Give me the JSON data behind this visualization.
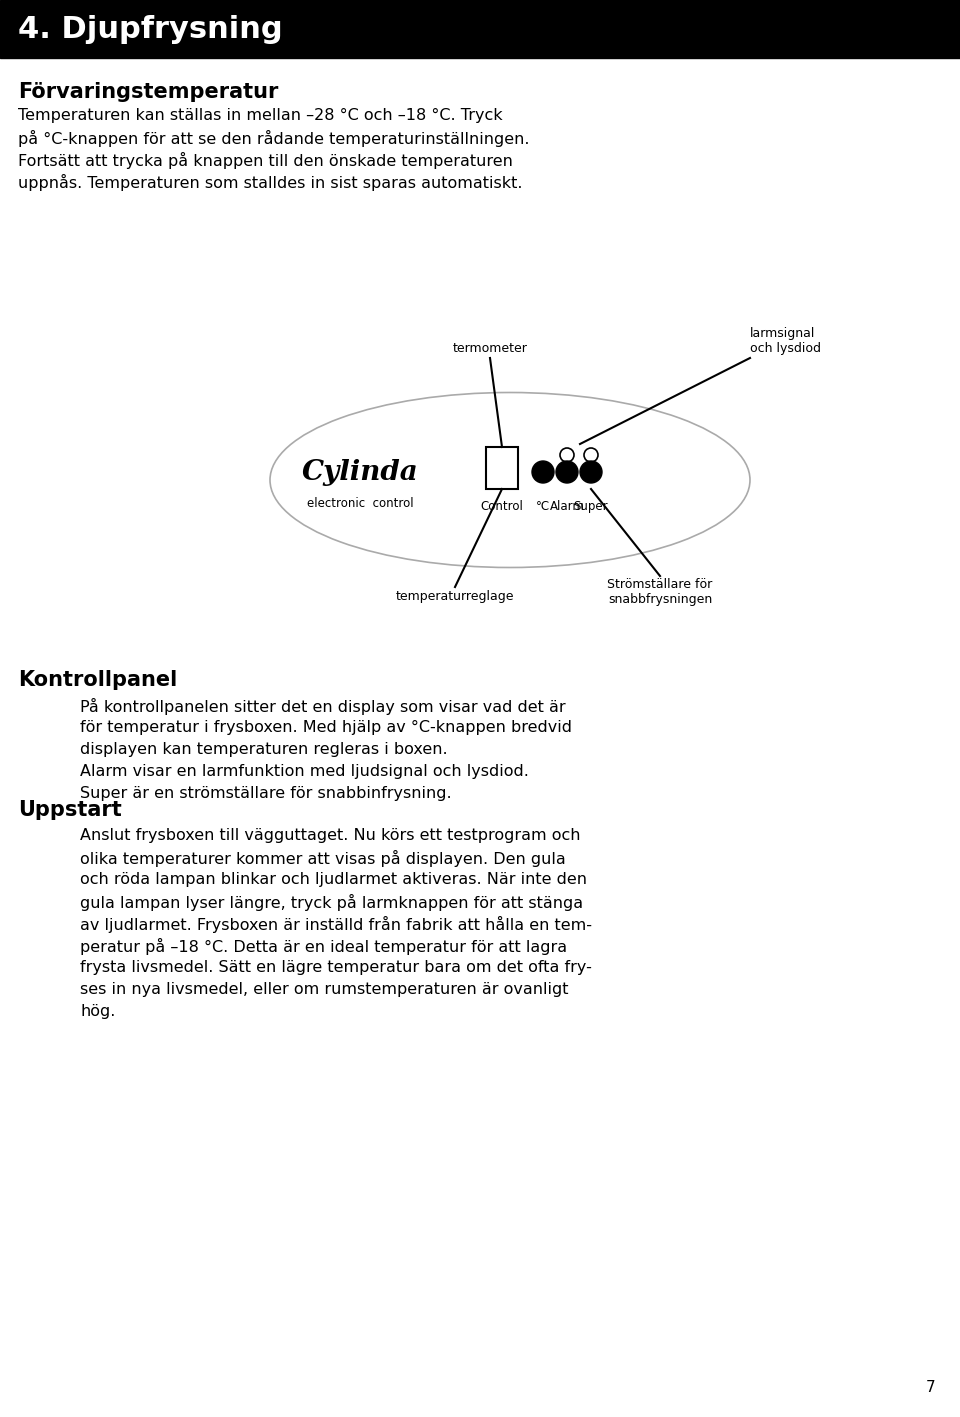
{
  "title": "4. Djupfrysning",
  "title_bg": "#000000",
  "title_color": "#ffffff",
  "title_fontsize": 22,
  "bg_color": "#ffffff",
  "text_color": "#000000",
  "section1_heading": "Förvaringstemperatur",
  "section1_para": "Temperaturen kan ställas in mellan –28 °C och –18 °C. Tryck på °C-knappen för att se den rådande temperaturinställningen. Fortsätt att trycka på knappen till den önskade temperaturen uppnås. Temperaturen som stalldes in sist sparas automatiskt.",
  "label_termometer": "termometer",
  "label_larmsignal": "larmsignal\noch lysdiod",
  "label_temperaturreglage": "temperaturreglage",
  "label_stromstallare": "Strömställare för\nsnabbfrysningen",
  "label_electronic_control": "electronic  control",
  "label_control": "Control",
  "label_celsius": "°C",
  "label_alarm": "Alarm",
  "label_super": "Super",
  "section2_heading": "Kontrollpanel",
  "section2_para": "På kontrollpanelen sitter det en display som visar vad det är för temperatur i frysboxen. Med hjälp av °C-knappen bredvid displayen kan temperaturen regleras i boxen.\nAlarm visar en larmfunktion med ljudsignal och lysdiod.\nSuper är en strömställare för snabbinfrysning.",
  "section3_heading": "Uppstart",
  "section3_para": "Anslut frysboxen till vägguttaget. Nu körs ett testprogram och olika temperaturer kommer att visas på displayen. Den gula och röda lampan blinkar och ljudlarmet aktiveras. När inte den gula lampan lyser längre, tryck på larmknappen för att stänga av ljudlarmet. Frysboxen är inställd från fabrik att hålla en tem- peratur på –18 °C. Detta är en ideal temperatur för att lagra frysta livsmedel. Sätt en lägre temperatur bara om det ofta fry- ses in nya livsmedel, eller om rumstemperaturen är ovanligt hög.",
  "page_number": "7"
}
